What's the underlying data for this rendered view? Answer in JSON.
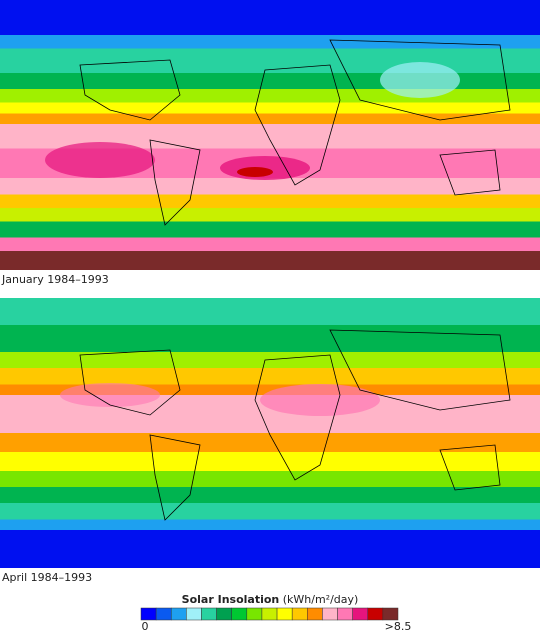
{
  "maps": [
    {
      "caption": "January 1984–1993"
    },
    {
      "caption": "April 1984–1993"
    }
  ],
  "legend": {
    "title": "Solar Insolation",
    "units": "(kWh/m²/day)",
    "min_label": "0",
    "max_label": ">8.5",
    "colors": [
      "#0000ff",
      "#0a5af0",
      "#1ea0f0",
      "#a0f0f8",
      "#28d2a0",
      "#00a050",
      "#00c832",
      "#78e600",
      "#c8f000",
      "#ffff00",
      "#ffc800",
      "#ff8c00",
      "#ffb4c8",
      "#ff78b4",
      "#e6147d",
      "#c80000",
      "#7a2a2a"
    ]
  }
}
